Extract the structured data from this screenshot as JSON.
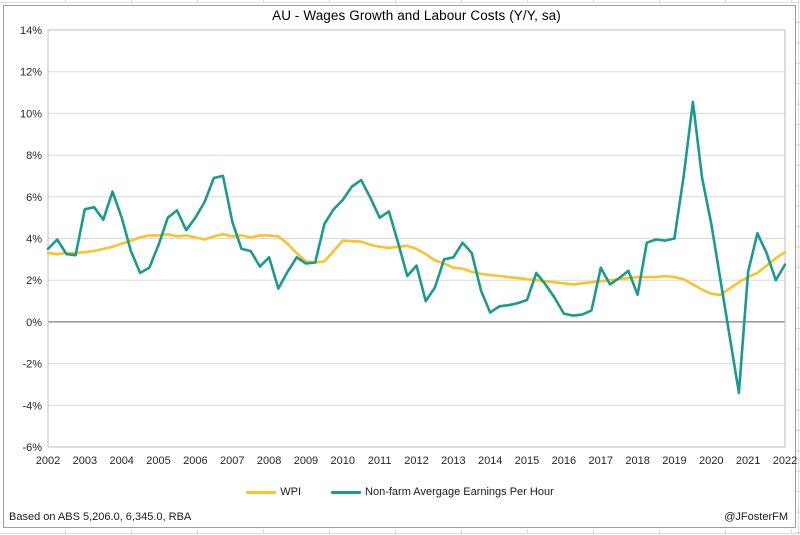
{
  "footer": {
    "source": "Based on ABS 5,206.0, 6,345.0, RBA",
    "credit": "@JFosterFM"
  },
  "chart_data": {
    "type": "line",
    "title": "AU - Wages Growth and Labour Costs (Y/Y, sa)",
    "xlabel": "",
    "ylabel": "",
    "xlim": [
      2002,
      2022
    ],
    "ylim": [
      -6,
      14
    ],
    "grid": true,
    "legend_position": "bottom",
    "x_start": 2002,
    "x_step": 0.25,
    "x_unit": "quarterly",
    "xticks": [
      "2002",
      "2003",
      "2004",
      "2005",
      "2006",
      "2007",
      "2008",
      "2009",
      "2010",
      "2011",
      "2012",
      "2013",
      "2014",
      "2015",
      "2016",
      "2017",
      "2018",
      "2019",
      "2020",
      "2021",
      "2022"
    ],
    "yticks": [
      {
        "label": "14%",
        "value": 14
      },
      {
        "label": "12%",
        "value": 12
      },
      {
        "label": "10%",
        "value": 10
      },
      {
        "label": "8%",
        "value": 8
      },
      {
        "label": "6%",
        "value": 6
      },
      {
        "label": "4%",
        "value": 4
      },
      {
        "label": "2%",
        "value": 2
      },
      {
        "label": "0%",
        "value": 0
      },
      {
        "label": "-2%",
        "value": -2
      },
      {
        "label": "-4%",
        "value": -4
      },
      {
        "label": "-6%",
        "value": -6
      }
    ],
    "series": [
      {
        "name": "WPI",
        "color": "#F9C32C",
        "values": [
          3.3,
          3.25,
          3.3,
          3.3,
          3.35,
          3.4,
          3.5,
          3.6,
          3.75,
          3.9,
          4.05,
          4.15,
          4.15,
          4.2,
          4.1,
          4.15,
          4.05,
          3.95,
          4.1,
          4.2,
          4.1,
          4.15,
          4.05,
          4.15,
          4.15,
          4.1,
          3.75,
          3.3,
          2.9,
          2.85,
          2.9,
          3.4,
          3.9,
          3.87,
          3.85,
          3.7,
          3.6,
          3.55,
          3.6,
          3.65,
          3.5,
          3.25,
          2.95,
          2.8,
          2.6,
          2.55,
          2.4,
          2.3,
          2.25,
          2.2,
          2.15,
          2.1,
          2.05,
          2.0,
          1.95,
          1.9,
          1.85,
          1.8,
          1.85,
          1.9,
          1.95,
          2.0,
          2.05,
          2.1,
          2.15,
          2.15,
          2.15,
          2.2,
          2.15,
          2.05,
          1.8,
          1.55,
          1.35,
          1.3,
          1.6,
          1.9,
          2.15,
          2.35,
          2.7,
          3.05,
          3.35
        ]
      },
      {
        "name": "Non-farm Avergage Earnings Per Hour",
        "color": "#1A9B8F",
        "values": [
          3.5,
          3.95,
          3.25,
          3.2,
          5.4,
          5.5,
          4.9,
          6.25,
          5.0,
          3.4,
          2.35,
          2.6,
          3.7,
          5.0,
          5.35,
          4.4,
          5.0,
          5.75,
          6.9,
          7.0,
          4.8,
          3.5,
          3.4,
          2.65,
          3.1,
          1.6,
          2.4,
          3.1,
          2.8,
          2.85,
          4.7,
          5.4,
          5.85,
          6.5,
          6.8,
          5.95,
          5.0,
          5.3,
          3.8,
          2.2,
          2.7,
          1.0,
          1.65,
          3.0,
          3.1,
          3.8,
          3.3,
          1.5,
          0.45,
          0.75,
          0.8,
          0.9,
          1.05,
          2.35,
          1.8,
          1.15,
          0.4,
          0.3,
          0.35,
          0.55,
          2.6,
          1.8,
          2.1,
          2.45,
          1.3,
          3.8,
          3.95,
          3.9,
          4.0,
          7.0,
          10.55,
          6.9,
          4.7,
          2.0,
          -0.7,
          -3.4,
          2.4,
          4.25,
          3.3,
          2.0,
          2.75
        ]
      }
    ]
  }
}
